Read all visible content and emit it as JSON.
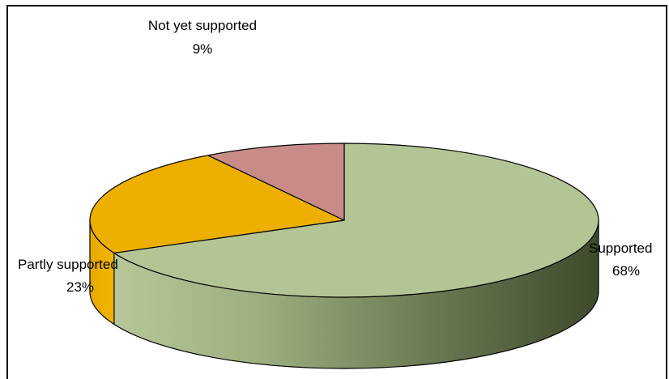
{
  "chart_data": {
    "type": "pie",
    "style": "3d",
    "slices": [
      {
        "label": "Supported",
        "value": 68,
        "display": "68%",
        "color": "#b4c595"
      },
      {
        "label": "Partly supported",
        "value": 23,
        "display": "23%",
        "color": "#eeb000"
      },
      {
        "label": "Not yet supported",
        "value": 9,
        "display": "9%",
        "color": "#c98b88"
      }
    ]
  }
}
